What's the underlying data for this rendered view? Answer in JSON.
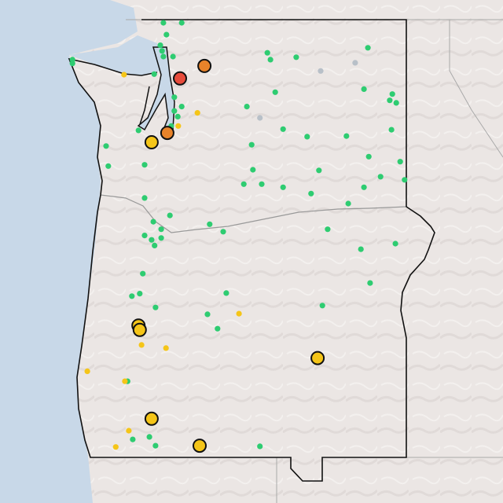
{
  "map": {
    "colors": {
      "land": "#ebe6e4",
      "water": "#c8d8e8",
      "border": "#111111",
      "neighbor_border": "#a9a9a9",
      "good": "#2ecc71",
      "moderate": "#f5c518",
      "usg": "#e8832a",
      "unhealthy": "#e74c3c",
      "nodata": "#b8c0c8"
    },
    "points": [
      {
        "lat": 48.95,
        "lon": -122.6,
        "level": "good"
      },
      {
        "lat": 48.95,
        "lon": -122.18,
        "level": "good"
      },
      {
        "lat": 48.76,
        "lon": -122.53,
        "level": "good"
      },
      {
        "lat": 48.59,
        "lon": -122.67,
        "level": "good"
      },
      {
        "lat": 48.5,
        "lon": -122.63,
        "level": "good"
      },
      {
        "lat": 48.41,
        "lon": -122.6,
        "level": "good"
      },
      {
        "lat": 48.41,
        "lon": -122.38,
        "level": "good"
      },
      {
        "lat": 48.36,
        "lon": -124.68,
        "level": "good"
      },
      {
        "lat": 48.3,
        "lon": -124.68,
        "level": "good"
      },
      {
        "lat": 48.47,
        "lon": -120.22,
        "level": "good"
      },
      {
        "lat": 48.36,
        "lon": -120.15,
        "level": "good"
      },
      {
        "lat": 48.4,
        "lon": -119.56,
        "level": "good"
      },
      {
        "lat": 48.55,
        "lon": -117.92,
        "level": "good"
      },
      {
        "lat": 48.13,
        "lon": -122.81,
        "level": "good"
      },
      {
        "lat": 47.84,
        "lon": -120.04,
        "level": "good"
      },
      {
        "lat": 47.89,
        "lon": -118.01,
        "level": "good"
      },
      {
        "lat": 47.81,
        "lon": -117.36,
        "level": "good"
      },
      {
        "lat": 47.71,
        "lon": -117.42,
        "level": "good"
      },
      {
        "lat": 47.67,
        "lon": -117.27,
        "level": "good"
      },
      {
        "lat": 47.76,
        "lon": -122.35,
        "level": "good"
      },
      {
        "lat": 47.61,
        "lon": -122.18,
        "level": "good"
      },
      {
        "lat": 47.54,
        "lon": -122.35,
        "level": "good"
      },
      {
        "lat": 47.45,
        "lon": -122.27,
        "level": "good"
      },
      {
        "lat": 47.3,
        "lon": -122.42,
        "level": "good"
      },
      {
        "lat": 47.61,
        "lon": -120.69,
        "level": "good"
      },
      {
        "lat": 47.25,
        "lon": -119.86,
        "level": "good"
      },
      {
        "lat": 47.13,
        "lon": -119.31,
        "level": "good"
      },
      {
        "lat": 47.14,
        "lon": -118.41,
        "level": "good"
      },
      {
        "lat": 47.24,
        "lon": -117.38,
        "level": "good"
      },
      {
        "lat": 47.23,
        "lon": -123.17,
        "level": "good"
      },
      {
        "lat": 46.98,
        "lon": -123.91,
        "level": "good"
      },
      {
        "lat": 47.0,
        "lon": -120.58,
        "level": "good"
      },
      {
        "lat": 46.81,
        "lon": -117.9,
        "level": "good"
      },
      {
        "lat": 46.66,
        "lon": -123.86,
        "level": "good"
      },
      {
        "lat": 46.68,
        "lon": -123.03,
        "level": "good"
      },
      {
        "lat": 46.73,
        "lon": -117.18,
        "level": "good"
      },
      {
        "lat": 46.6,
        "lon": -120.55,
        "level": "good"
      },
      {
        "lat": 46.59,
        "lon": -119.04,
        "level": "good"
      },
      {
        "lat": 46.37,
        "lon": -120.76,
        "level": "good"
      },
      {
        "lat": 46.37,
        "lon": -120.35,
        "level": "good"
      },
      {
        "lat": 46.32,
        "lon": -119.86,
        "level": "good"
      },
      {
        "lat": 46.49,
        "lon": -117.63,
        "level": "good"
      },
      {
        "lat": 46.32,
        "lon": -118.01,
        "level": "good"
      },
      {
        "lat": 46.44,
        "lon": -117.08,
        "level": "good"
      },
      {
        "lat": 46.22,
        "lon": -119.22,
        "level": "good"
      },
      {
        "lat": 46.15,
        "lon": -123.03,
        "level": "good"
      },
      {
        "lat": 46.06,
        "lon": -118.37,
        "level": "good"
      },
      {
        "lat": 45.87,
        "lon": -122.45,
        "level": "good"
      },
      {
        "lat": 45.77,
        "lon": -122.83,
        "level": "good"
      },
      {
        "lat": 45.73,
        "lon": -121.54,
        "level": "good"
      },
      {
        "lat": 45.65,
        "lon": -122.65,
        "level": "good"
      },
      {
        "lat": 45.65,
        "lon": -118.84,
        "level": "good"
      },
      {
        "lat": 45.61,
        "lon": -121.23,
        "level": "good"
      },
      {
        "lat": 45.55,
        "lon": -123.03,
        "level": "good"
      },
      {
        "lat": 45.48,
        "lon": -122.87,
        "level": "good"
      },
      {
        "lat": 45.51,
        "lon": -122.65,
        "level": "good"
      },
      {
        "lat": 45.39,
        "lon": -122.8,
        "level": "good"
      },
      {
        "lat": 45.33,
        "lon": -118.08,
        "level": "good"
      },
      {
        "lat": 45.42,
        "lon": -117.29,
        "level": "good"
      },
      {
        "lat": 44.94,
        "lon": -123.07,
        "level": "good"
      },
      {
        "lat": 44.79,
        "lon": -117.87,
        "level": "good"
      },
      {
        "lat": 44.58,
        "lon": -123.32,
        "level": "good"
      },
      {
        "lat": 44.62,
        "lon": -123.14,
        "level": "good"
      },
      {
        "lat": 44.63,
        "lon": -121.16,
        "level": "good"
      },
      {
        "lat": 44.43,
        "lon": -118.96,
        "level": "good"
      },
      {
        "lat": 44.4,
        "lon": -122.78,
        "level": "good"
      },
      {
        "lat": 44.29,
        "lon": -121.59,
        "level": "good"
      },
      {
        "lat": 44.06,
        "lon": -121.36,
        "level": "good"
      },
      {
        "lat": 43.22,
        "lon": -123.42,
        "level": "good"
      },
      {
        "lat": 42.33,
        "lon": -122.92,
        "level": "good"
      },
      {
        "lat": 42.29,
        "lon": -123.3,
        "level": "good"
      },
      {
        "lat": 42.19,
        "lon": -122.78,
        "level": "good"
      },
      {
        "lat": 42.18,
        "lon": -120.39,
        "level": "good"
      },
      {
        "lat": 48.31,
        "lon": -118.21,
        "level": "nodata"
      },
      {
        "lat": 48.18,
        "lon": -119.0,
        "level": "nodata"
      },
      {
        "lat": 47.43,
        "lon": -120.39,
        "level": "nodata"
      },
      {
        "lat": 48.12,
        "lon": -123.5,
        "level": "moderate"
      },
      {
        "lat": 47.51,
        "lon": -121.82,
        "level": "moderate"
      },
      {
        "lat": 47.3,
        "lon": -122.26,
        "level": "moderate"
      },
      {
        "lat": 44.3,
        "lon": -120.87,
        "level": "moderate"
      },
      {
        "lat": 43.8,
        "lon": -123.1,
        "level": "moderate"
      },
      {
        "lat": 43.75,
        "lon": -122.54,
        "level": "moderate"
      },
      {
        "lat": 43.38,
        "lon": -124.34,
        "level": "moderate"
      },
      {
        "lat": 43.22,
        "lon": -123.48,
        "level": "moderate"
      },
      {
        "lat": 42.43,
        "lon": -123.39,
        "level": "moderate"
      },
      {
        "lat": 42.17,
        "lon": -123.69,
        "level": "moderate"
      },
      {
        "lat": 47.04,
        "lon": -122.87,
        "level": "moderate",
        "highlight": true
      },
      {
        "lat": 44.11,
        "lon": -123.17,
        "level": "moderate",
        "highlight": true
      },
      {
        "lat": 44.04,
        "lon": -123.14,
        "level": "moderate",
        "highlight": true
      },
      {
        "lat": 43.59,
        "lon": -119.07,
        "level": "moderate",
        "highlight": true
      },
      {
        "lat": 42.62,
        "lon": -122.87,
        "level": "moderate",
        "highlight": true
      },
      {
        "lat": 42.19,
        "lon": -121.77,
        "level": "moderate",
        "highlight": true
      },
      {
        "lat": 48.26,
        "lon": -121.66,
        "level": "usg",
        "highlight": true
      },
      {
        "lat": 47.19,
        "lon": -122.51,
        "level": "usg",
        "highlight": true
      },
      {
        "lat": 48.06,
        "lon": -122.22,
        "level": "unhealthy",
        "highlight": true
      }
    ]
  }
}
